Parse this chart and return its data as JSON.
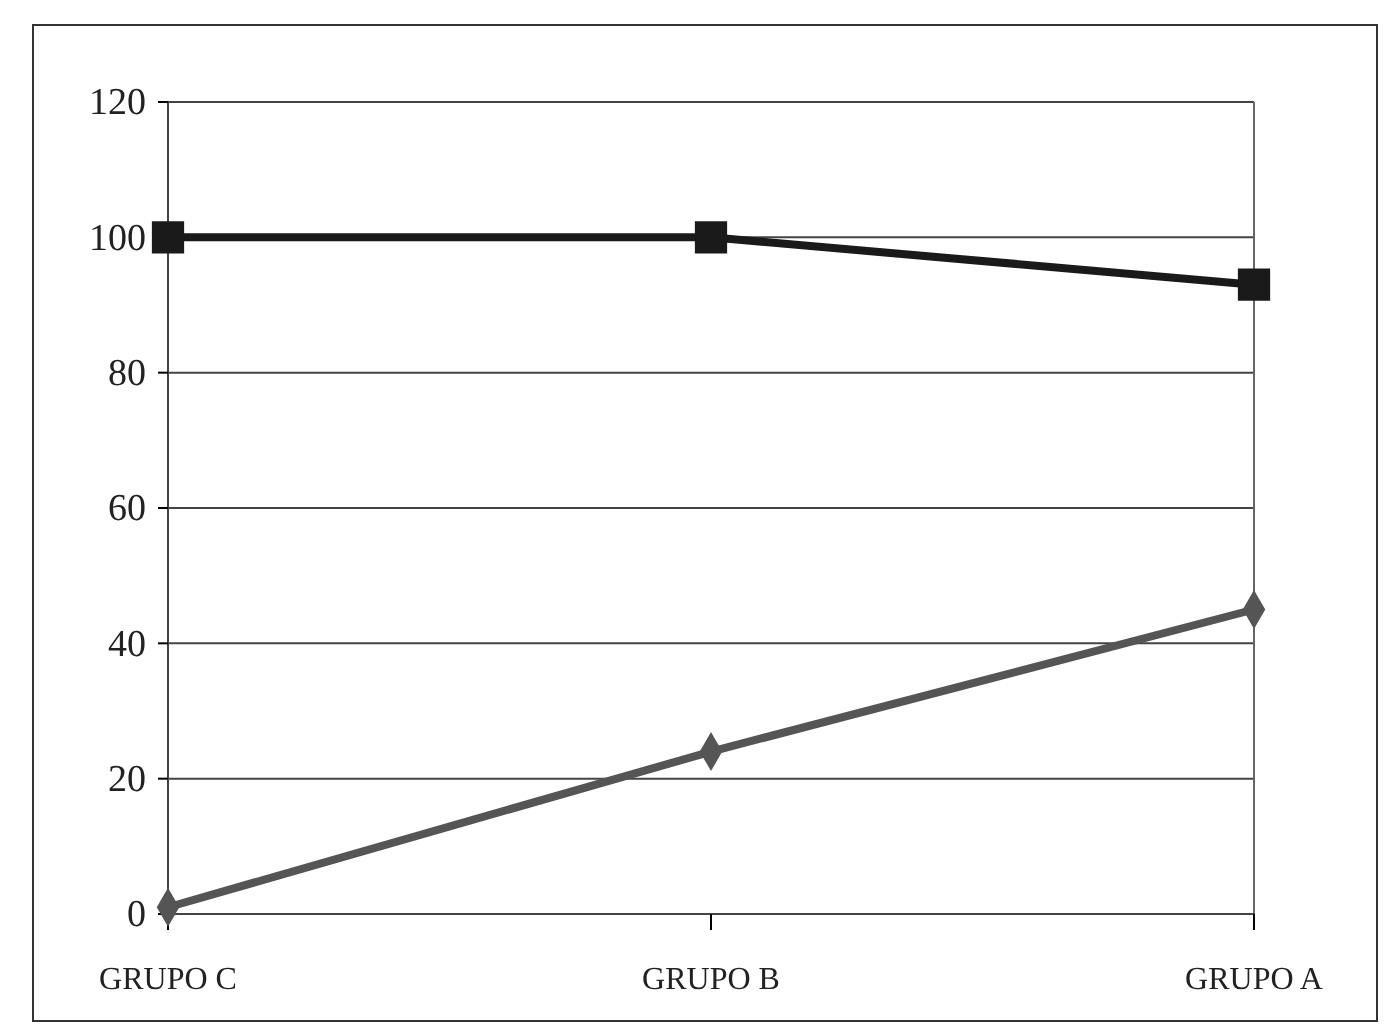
{
  "chart_data": {
    "type": "line",
    "categories": [
      "GRUPO C",
      "GRUPO B",
      "GRUPO A"
    ],
    "series": [
      {
        "color": "#1a1a1a",
        "marker": "square",
        "values": [
          100,
          100,
          93
        ]
      },
      {
        "color": "#555555",
        "marker": "diamond",
        "values": [
          1,
          24,
          45
        ]
      }
    ],
    "ylim": [
      0,
      120
    ],
    "yticks": [
      0,
      20,
      40,
      60,
      80,
      100,
      120
    ],
    "grid": "y"
  }
}
